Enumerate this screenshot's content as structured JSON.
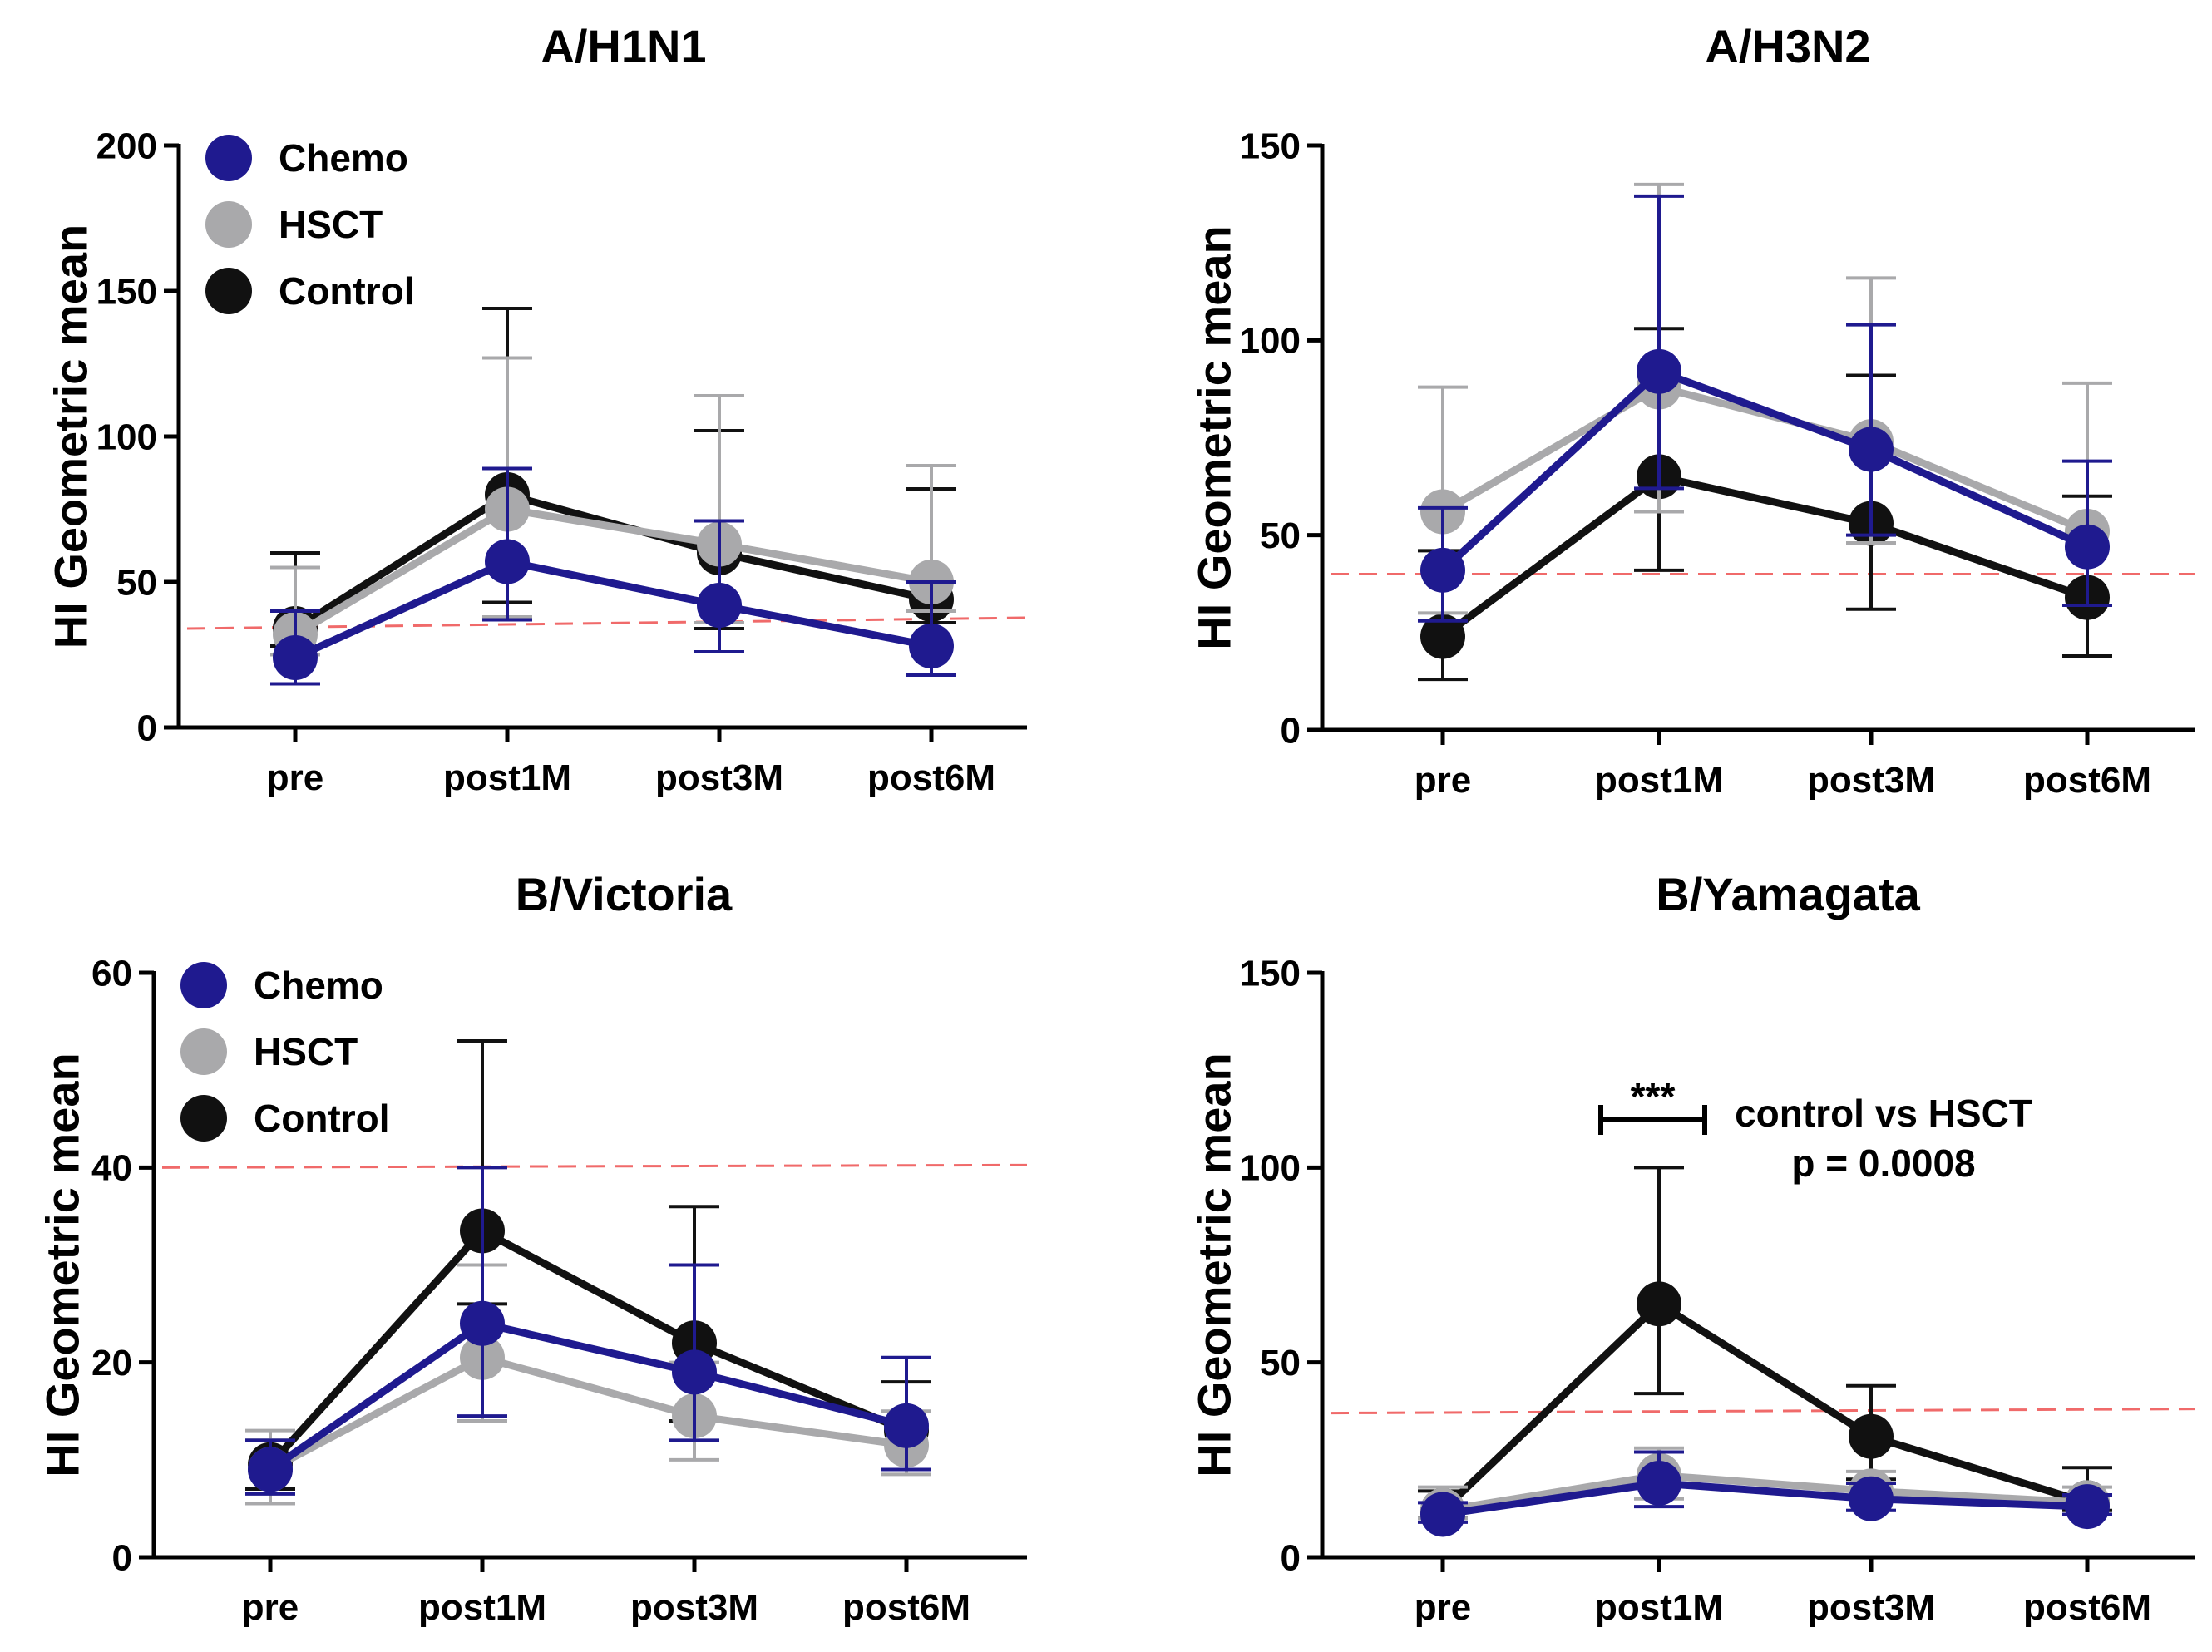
{
  "colors": {
    "Chemo": "#1f1a8f",
    "HSCT": "#a9a9ab",
    "Control": "#111111",
    "threshold": "#f06a6a"
  },
  "chart_data": [
    {
      "type": "line",
      "title": "A/H1N1",
      "xlabel": "",
      "ylabel": "HI Geometric mean",
      "categories": [
        "pre",
        "post1M",
        "post3M",
        "post6M"
      ],
      "ylim": [
        0,
        200
      ],
      "yticks": [
        0,
        50,
        100,
        150,
        200
      ],
      "threshold": 34,
      "legend": [
        "Chemo",
        "HSCT",
        "Control"
      ],
      "series": [
        {
          "name": "Control",
          "values": [
            34,
            80,
            60,
            44
          ],
          "err_low": [
            28,
            43,
            34,
            36
          ],
          "err_high": [
            60,
            144,
            102,
            82
          ]
        },
        {
          "name": "HSCT",
          "values": [
            32,
            75,
            63,
            50
          ],
          "err_low": [
            25,
            38,
            36,
            40
          ],
          "err_high": [
            55,
            127,
            114,
            90
          ]
        },
        {
          "name": "Chemo",
          "values": [
            24,
            57,
            42,
            28
          ],
          "err_low": [
            15,
            37,
            26,
            18
          ],
          "err_high": [
            40,
            89,
            71,
            50
          ]
        }
      ]
    },
    {
      "type": "line",
      "title": "A/H3N2",
      "xlabel": "",
      "ylabel": "HI Geometric mean",
      "categories": [
        "pre",
        "post1M",
        "post3M",
        "post6M"
      ],
      "ylim": [
        0,
        150
      ],
      "yticks": [
        0,
        50,
        100,
        150
      ],
      "threshold": 40,
      "legend": [],
      "series": [
        {
          "name": "Control",
          "values": [
            24,
            65,
            53,
            34
          ],
          "err_low": [
            13,
            41,
            31,
            19
          ],
          "err_high": [
            46,
            103,
            91,
            60
          ]
        },
        {
          "name": "HSCT",
          "values": [
            56,
            88,
            74,
            51
          ],
          "err_low": [
            30,
            56,
            48,
            32
          ],
          "err_high": [
            88,
            140,
            116,
            89
          ]
        },
        {
          "name": "Chemo",
          "values": [
            41,
            92,
            72,
            47
          ],
          "err_low": [
            28,
            62,
            50,
            32
          ],
          "err_high": [
            57,
            137,
            104,
            69
          ]
        }
      ]
    },
    {
      "type": "line",
      "title": "B/Victoria",
      "xlabel": "",
      "ylabel": "HI Geometric mean",
      "categories": [
        "pre",
        "post1M",
        "post3M",
        "post6M"
      ],
      "ylim": [
        0,
        60
      ],
      "yticks": [
        0,
        20,
        40,
        60
      ],
      "threshold": 40,
      "legend": [
        "Chemo",
        "HSCT",
        "Control"
      ],
      "series": [
        {
          "name": "Control",
          "values": [
            9.5,
            33.5,
            22,
            13
          ],
          "err_low": [
            7,
            26,
            14,
            9
          ],
          "err_high": [
            12,
            53,
            36,
            18
          ]
        },
        {
          "name": "HSCT",
          "values": [
            9,
            20.5,
            14.5,
            11.5
          ],
          "err_low": [
            5.5,
            14,
            10,
            8.5
          ],
          "err_high": [
            13,
            30,
            20,
            15
          ]
        },
        {
          "name": "Chemo",
          "values": [
            9,
            24,
            19,
            13.5
          ],
          "err_low": [
            6.5,
            14.5,
            12,
            9
          ],
          "err_high": [
            12,
            40,
            30,
            20.5
          ]
        }
      ]
    },
    {
      "type": "line",
      "title": "B/Yamagata",
      "xlabel": "",
      "ylabel": "HI Geometric mean",
      "categories": [
        "pre",
        "post1M",
        "post3M",
        "post6M"
      ],
      "ylim": [
        0,
        150
      ],
      "yticks": [
        0,
        50,
        100,
        150
      ],
      "threshold": 37,
      "legend": [],
      "annotation": {
        "stars": "***",
        "text_line1": "control vs HSCT",
        "text_line2": "p = 0.0008"
      },
      "series": [
        {
          "name": "Control",
          "values": [
            12,
            65,
            31,
            14
          ],
          "err_low": [
            10,
            42,
            20,
            12
          ],
          "err_high": [
            17,
            100,
            44,
            23
          ]
        },
        {
          "name": "HSCT",
          "values": [
            12,
            21,
            17,
            14
          ],
          "err_low": [
            10,
            15,
            12,
            11
          ],
          "err_high": [
            18,
            28,
            22,
            18
          ]
        },
        {
          "name": "Chemo",
          "values": [
            11,
            19,
            15,
            13
          ],
          "err_low": [
            9,
            13,
            12,
            11
          ],
          "err_high": [
            14,
            27,
            19,
            16
          ]
        }
      ]
    }
  ]
}
